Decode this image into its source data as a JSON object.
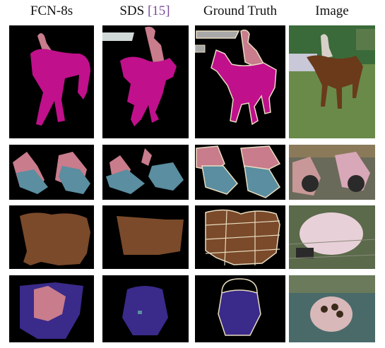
{
  "columns": [
    {
      "key": "fcn",
      "label": "FCN-8s",
      "ref": ""
    },
    {
      "key": "sds",
      "label": "SDS",
      "ref": "[15]"
    },
    {
      "key": "gt",
      "label": "Ground Truth",
      "ref": ""
    },
    {
      "key": "img",
      "label": "Image",
      "ref": ""
    }
  ],
  "rows": [
    {
      "key": "horse-rider"
    },
    {
      "key": "motorcycles"
    },
    {
      "key": "sheep"
    },
    {
      "key": "boat"
    }
  ],
  "colors": {
    "person": "#c87c8c",
    "horse": "#c0108c",
    "motorbike": "#5a8ea0",
    "sheep": "#7a4a2a",
    "boat": "#3a2a8a",
    "background": "#000000",
    "boundary": "#e8dcc0",
    "fence": "#a8a8a8"
  }
}
